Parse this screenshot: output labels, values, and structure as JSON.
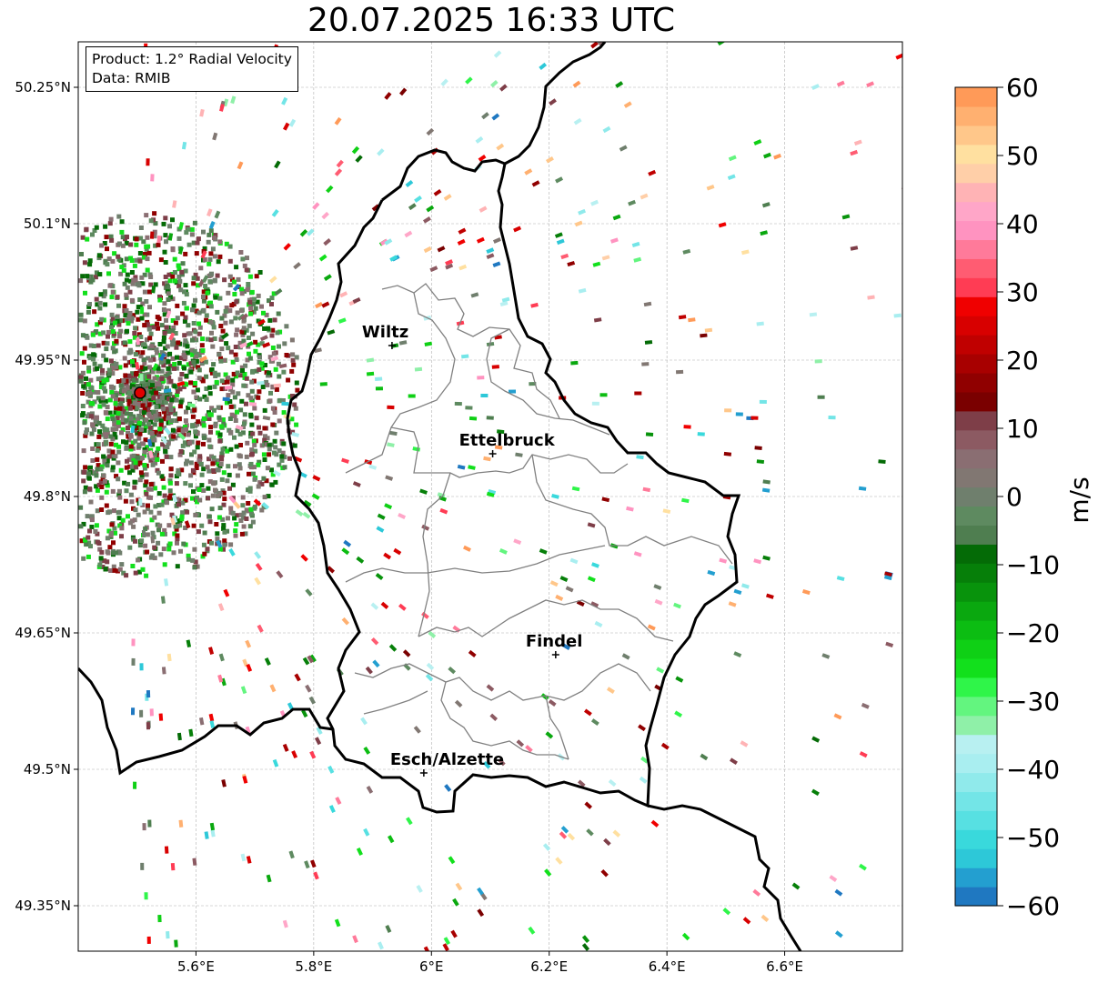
{
  "title": "20.07.2025 16:33 UTC",
  "info": {
    "product": "Product: 1.2° Radial Velocity",
    "data": "Data: RMIB"
  },
  "map": {
    "lon_range": [
      5.4,
      6.8
    ],
    "lat_range": [
      49.3,
      50.3
    ],
    "lon_ticks": [
      {
        "value": 5.6,
        "label": "5.6°E"
      },
      {
        "value": 5.8,
        "label": "5.8°E"
      },
      {
        "value": 6.0,
        "label": "6°E"
      },
      {
        "value": 6.2,
        "label": "6.2°E"
      },
      {
        "value": 6.4,
        "label": "6.4°E"
      },
      {
        "value": 6.6,
        "label": "6.6°E"
      }
    ],
    "lat_ticks": [
      {
        "value": 50.25,
        "label": "50.25°N"
      },
      {
        "value": 50.1,
        "label": "50.1°N"
      },
      {
        "value": 49.95,
        "label": "49.95°N"
      },
      {
        "value": 49.8,
        "label": "49.8°N"
      },
      {
        "value": 49.65,
        "label": "49.65°N"
      },
      {
        "value": 49.5,
        "label": "49.5°N"
      },
      {
        "value": 49.35,
        "label": "49.35°N"
      }
    ],
    "radar_site": {
      "lon": 5.505,
      "lat": 49.914,
      "color": "#e00000"
    },
    "cities": [
      {
        "name": "Wiltz",
        "lon": 5.933,
        "lat": 49.966
      },
      {
        "name": "Ettelbruck",
        "lon": 6.104,
        "lat": 49.847
      },
      {
        "name": "Findel",
        "lon": 6.211,
        "lat": 49.626
      },
      {
        "name": "Esch/Alzette",
        "lon": 5.987,
        "lat": 49.496
      }
    ]
  },
  "colorbar": {
    "unit": "m/s",
    "min": -60,
    "max": 60,
    "ticks": [
      {
        "value": 60,
        "label": "60"
      },
      {
        "value": 50,
        "label": "50"
      },
      {
        "value": 40,
        "label": "40"
      },
      {
        "value": 30,
        "label": "30"
      },
      {
        "value": 20,
        "label": "20"
      },
      {
        "value": 10,
        "label": "10"
      },
      {
        "value": 0,
        "label": "0"
      },
      {
        "value": -10,
        "label": "−10"
      },
      {
        "value": -20,
        "label": "−20"
      },
      {
        "value": -30,
        "label": "−30"
      },
      {
        "value": -40,
        "label": "−40"
      },
      {
        "value": -50,
        "label": "−50"
      },
      {
        "value": -60,
        "label": "−60"
      }
    ],
    "colors": [
      "#1f78c1",
      "#239fd0",
      "#2dc8d8",
      "#39d9dc",
      "#57e0e2",
      "#73e5e7",
      "#90eaeb",
      "#a9eef0",
      "#b8f0f1",
      "#8ff0a8",
      "#63f57f",
      "#2ff549",
      "#12e01c",
      "#0fd015",
      "#0cbd12",
      "#0aa80f",
      "#08930c",
      "#067f09",
      "#046b06",
      "#4f7e50",
      "#5e8a60",
      "#6f7f6d",
      "#817772",
      "#8a6e72",
      "#8c5a62",
      "#7e3e48",
      "#7a0000",
      "#900000",
      "#a80000",
      "#c00000",
      "#d80000",
      "#f00000",
      "#ff3c54",
      "#ff5c72",
      "#ff7a9a",
      "#ff93c0",
      "#ffa6c8",
      "#ffb3b5",
      "#ffcfa8",
      "#ffe0a0",
      "#ffc78a",
      "#ffb070",
      "#ff9a58"
    ]
  }
}
